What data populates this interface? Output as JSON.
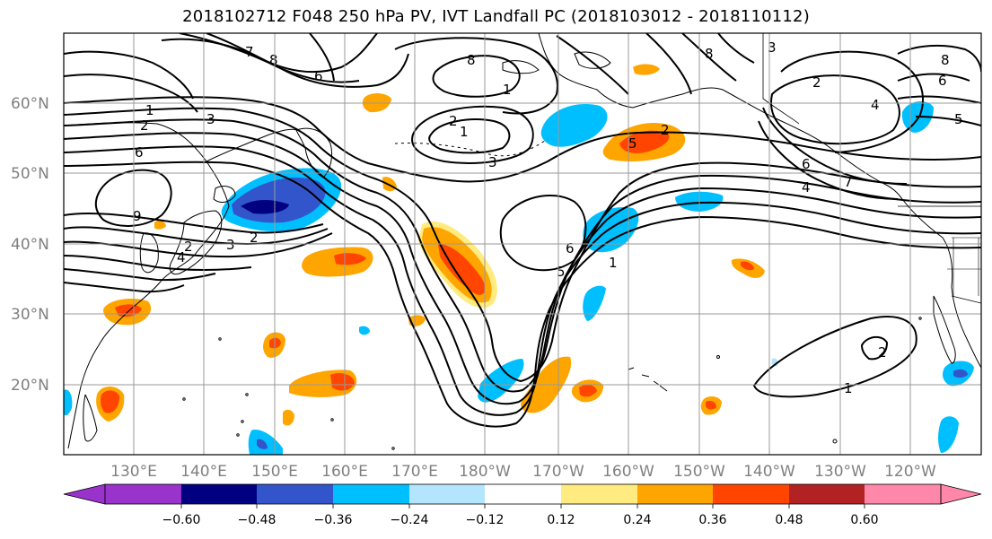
{
  "title": "2018102712 F048 250 hPa PV, IVT Landfall PC (2018103012 - 2018110112)",
  "map": {
    "projection": "equirectangular",
    "lon_range": [
      120,
      251
    ],
    "lat_range": [
      10,
      70
    ],
    "grid": true,
    "lat_labels": [
      "60°N",
      "50°N",
      "40°N",
      "30°N",
      "20°N"
    ],
    "lon_labels": [
      "130°E",
      "140°E",
      "150°E",
      "160°E",
      "170°E",
      "180°W",
      "170°W",
      "160°W",
      "150°W",
      "140°W",
      "130°W",
      "120°W"
    ]
  },
  "colorbar": {
    "labels": [
      "−0.60",
      "−0.48",
      "−0.36",
      "−0.24",
      "−0.12",
      "0.12",
      "0.24",
      "0.36",
      "0.48",
      "0.60"
    ],
    "colors": [
      "#9933cc",
      "#000080",
      "#3355cc",
      "#00bfff",
      "#b3e5ff",
      "#ffffff",
      "#ffeb80",
      "#ffa500",
      "#ff4500",
      "#b22222",
      "#ff88aa"
    ],
    "extend": "both"
  },
  "pv_contour_labels": [
    "1",
    "2",
    "3",
    "4",
    "5",
    "6",
    "7",
    "8",
    "9"
  ],
  "contour_label_samples": [
    {
      "text": "8"
    },
    {
      "text": "6"
    },
    {
      "text": "7"
    },
    {
      "text": "8"
    },
    {
      "text": "1"
    },
    {
      "text": "8"
    },
    {
      "text": "3"
    },
    {
      "text": "2"
    },
    {
      "text": "6"
    },
    {
      "text": "8"
    },
    {
      "text": "1"
    },
    {
      "text": "2"
    },
    {
      "text": "3"
    },
    {
      "text": "6"
    },
    {
      "text": "2"
    },
    {
      "text": "1"
    },
    {
      "text": "3"
    },
    {
      "text": "5"
    },
    {
      "text": "2"
    },
    {
      "text": "4"
    },
    {
      "text": "5"
    },
    {
      "text": "7"
    },
    {
      "text": "6"
    },
    {
      "text": "4"
    },
    {
      "text": "9"
    },
    {
      "text": "2"
    },
    {
      "text": "3"
    },
    {
      "text": "2"
    },
    {
      "text": "4"
    },
    {
      "text": "6"
    },
    {
      "text": "5"
    },
    {
      "text": "1"
    },
    {
      "text": "2"
    },
    {
      "text": "1"
    }
  ],
  "anomaly_colors": {
    "neg_strong": "#3355cc",
    "neg_mid": "#00bfff",
    "neg_deep": "#000080",
    "pos_weak": "#ffeb80",
    "pos_mid": "#ffa500",
    "pos_strong": "#ff4500",
    "pos_deep": "#b22222"
  }
}
